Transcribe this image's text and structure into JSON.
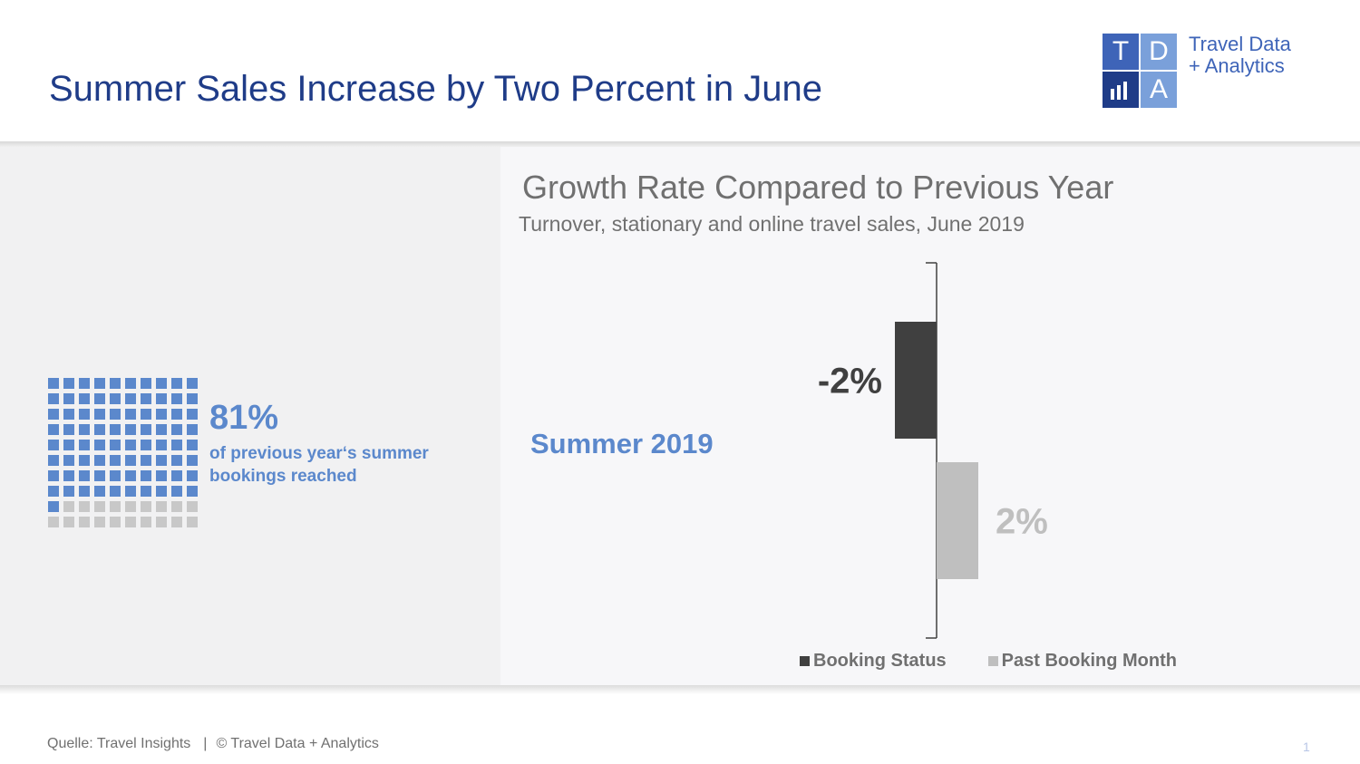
{
  "header": {
    "title": "Summer Sales Increase by Two Percent in June"
  },
  "logo": {
    "cells": [
      "T",
      "D",
      "",
      "A"
    ],
    "cell_colors": [
      "#3e64b8",
      "#7aa0da",
      "#1f3c88",
      "#7aa0da"
    ],
    "chart_icon": "bar-chart-icon",
    "line1": "Travel Data",
    "line2": "+  Analytics"
  },
  "kpi": {
    "value": "81%",
    "caption": "of previous year‘s summer bookings reached",
    "filled_cells": 81,
    "total_cells": 100,
    "filled_color": "#5b88cc",
    "empty_color": "#c8c8c8"
  },
  "chart_data": {
    "type": "bar",
    "orientation": "horizontal",
    "title": "Growth Rate Compared to Previous Year",
    "subtitle": "Turnover, stationary and online travel sales, June 2019",
    "categories": [
      "Summer 2019"
    ],
    "series": [
      {
        "name": "Booking Status",
        "values": [
          -2
        ],
        "label": "-2%",
        "color": "#404040",
        "label_color": "#404040"
      },
      {
        "name": "Past Booking Month",
        "values": [
          2
        ],
        "label": "2%",
        "color": "#bfbfbf",
        "label_color": "#bfbfbf"
      }
    ],
    "xlim": [
      -3,
      3
    ],
    "grid": false,
    "legend": "bottom"
  },
  "footer": {
    "source": "Quelle: Travel Insights",
    "separator": "|",
    "copyright": "© Travel Data + Analytics",
    "page_number": "1"
  }
}
